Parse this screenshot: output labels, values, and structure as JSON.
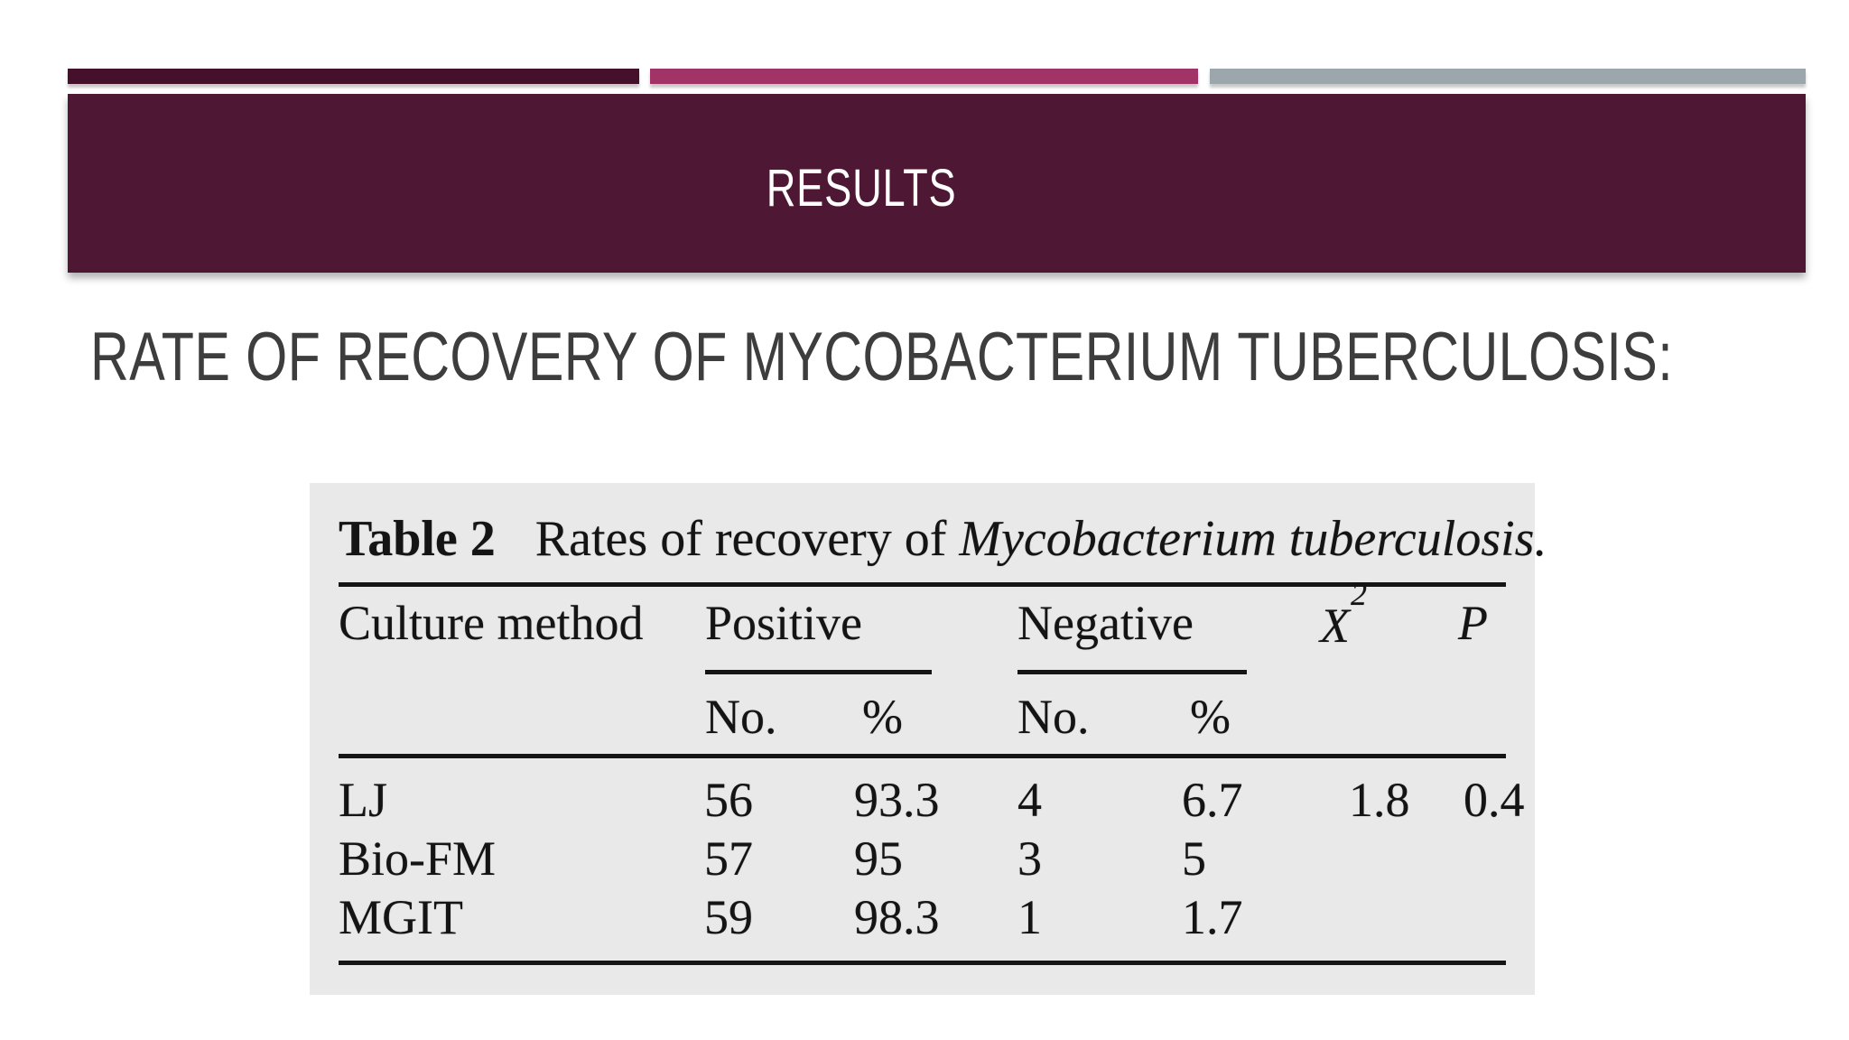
{
  "slide": {
    "banner": {
      "title": "RESULTS"
    },
    "heading": "RATE OF RECOVERY OF MYCOBACTERIUM TUBERCULOSIS:",
    "colors": {
      "banner_bg": "#4e1734",
      "bar1": "#44102c",
      "bar2": "#a13366",
      "bar3": "#9ca6ad",
      "heading_text": "#3d3d3d",
      "figure_bg": "#e9e9e9",
      "ink": "#141414"
    }
  },
  "figure": {
    "caption": {
      "label": "Table 2",
      "text": "Rates of recovery of",
      "species": "Mycobacterium tuberculosis."
    },
    "headers": {
      "culture_method": "Culture method",
      "positive": "Positive",
      "negative": "Negative",
      "chi_base": "X",
      "chi_exp": "2",
      "p": "P",
      "no_label": "No.",
      "pct_label": "%"
    },
    "rows": [
      {
        "method": "LJ",
        "pos_no": "56",
        "pos_pct": "93.3",
        "neg_no": "4",
        "neg_pct": "6.7",
        "chi": "1.8",
        "p": "0.4"
      },
      {
        "method": "Bio-FM",
        "pos_no": "57",
        "pos_pct": "95",
        "neg_no": "3",
        "neg_pct": "5",
        "chi": "",
        "p": ""
      },
      {
        "method": "MGIT",
        "pos_no": "59",
        "pos_pct": "98.3",
        "neg_no": "1",
        "neg_pct": "1.7",
        "chi": "",
        "p": ""
      }
    ]
  }
}
